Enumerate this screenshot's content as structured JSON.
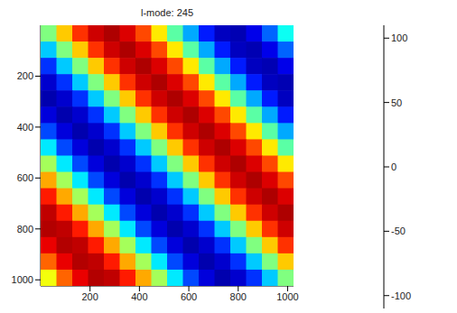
{
  "chart_data": {
    "type": "heatmap",
    "title": "l-mode: 245",
    "x": [
      32,
      96,
      160,
      224,
      288,
      352,
      416,
      480,
      544,
      608,
      672,
      736,
      800,
      864,
      928,
      992
    ],
    "y": [
      32,
      96,
      160,
      224,
      288,
      352,
      416,
      480,
      544,
      608,
      672,
      736,
      800,
      864,
      928,
      992
    ],
    "xlim": [
      0,
      1024
    ],
    "ylim": [
      0,
      1024
    ],
    "xticks": [
      200,
      400,
      600,
      800,
      1000
    ],
    "yticks": [
      200,
      400,
      600,
      800,
      1000
    ],
    "z": [
      [
        0,
        39,
        72,
        93,
        100,
        90,
        67,
        32,
        -8,
        -46,
        -77,
        -96,
        -99,
        -87,
        -61,
        -25
      ],
      [
        -39,
        0,
        39,
        72,
        93,
        100,
        90,
        67,
        32,
        -8,
        -46,
        -77,
        -96,
        -99,
        -87,
        -61
      ],
      [
        -72,
        -39,
        0,
        39,
        72,
        93,
        100,
        90,
        67,
        32,
        -8,
        -46,
        -77,
        -96,
        -99,
        -87
      ],
      [
        -93,
        -72,
        -39,
        0,
        39,
        72,
        93,
        100,
        90,
        67,
        32,
        -8,
        -46,
        -77,
        -96,
        -99
      ],
      [
        -100,
        -93,
        -72,
        -39,
        0,
        39,
        72,
        93,
        100,
        90,
        67,
        32,
        -8,
        -46,
        -77,
        -96
      ],
      [
        -90,
        -100,
        -93,
        -72,
        -39,
        0,
        39,
        72,
        93,
        100,
        90,
        67,
        32,
        -8,
        -46,
        -77
      ],
      [
        -67,
        -90,
        -100,
        -93,
        -72,
        -39,
        0,
        39,
        72,
        93,
        100,
        90,
        67,
        32,
        -8,
        -46
      ],
      [
        -32,
        -67,
        -90,
        -100,
        -93,
        -72,
        -39,
        0,
        39,
        72,
        93,
        100,
        90,
        67,
        32,
        -8
      ],
      [
        8,
        -32,
        -67,
        -90,
        -100,
        -93,
        -72,
        -39,
        0,
        39,
        72,
        93,
        100,
        90,
        67,
        32
      ],
      [
        46,
        8,
        -32,
        -67,
        -90,
        -100,
        -93,
        -72,
        -39,
        0,
        39,
        72,
        93,
        100,
        90,
        67
      ],
      [
        77,
        46,
        8,
        -32,
        -67,
        -90,
        -100,
        -93,
        -72,
        -39,
        0,
        39,
        72,
        93,
        100,
        90
      ],
      [
        96,
        77,
        46,
        8,
        -32,
        -67,
        -90,
        -100,
        -93,
        -72,
        -39,
        0,
        39,
        72,
        93,
        100
      ],
      [
        99,
        96,
        77,
        46,
        8,
        -32,
        -67,
        -90,
        -100,
        -93,
        -72,
        -39,
        0,
        39,
        72,
        93
      ],
      [
        87,
        99,
        96,
        77,
        46,
        8,
        -32,
        -67,
        -90,
        -100,
        -93,
        -72,
        -39,
        0,
        39,
        72
      ],
      [
        61,
        87,
        99,
        96,
        77,
        46,
        8,
        -32,
        -67,
        -90,
        -100,
        -93,
        -72,
        -39,
        0,
        39
      ],
      [
        25,
        61,
        87,
        99,
        96,
        77,
        46,
        8,
        -32,
        -67,
        -90,
        -100,
        -93,
        -72,
        -39,
        0
      ]
    ],
    "color_range": [
      -110,
      110
    ],
    "color_ticks": [
      -100,
      -50,
      0,
      50,
      100
    ]
  }
}
